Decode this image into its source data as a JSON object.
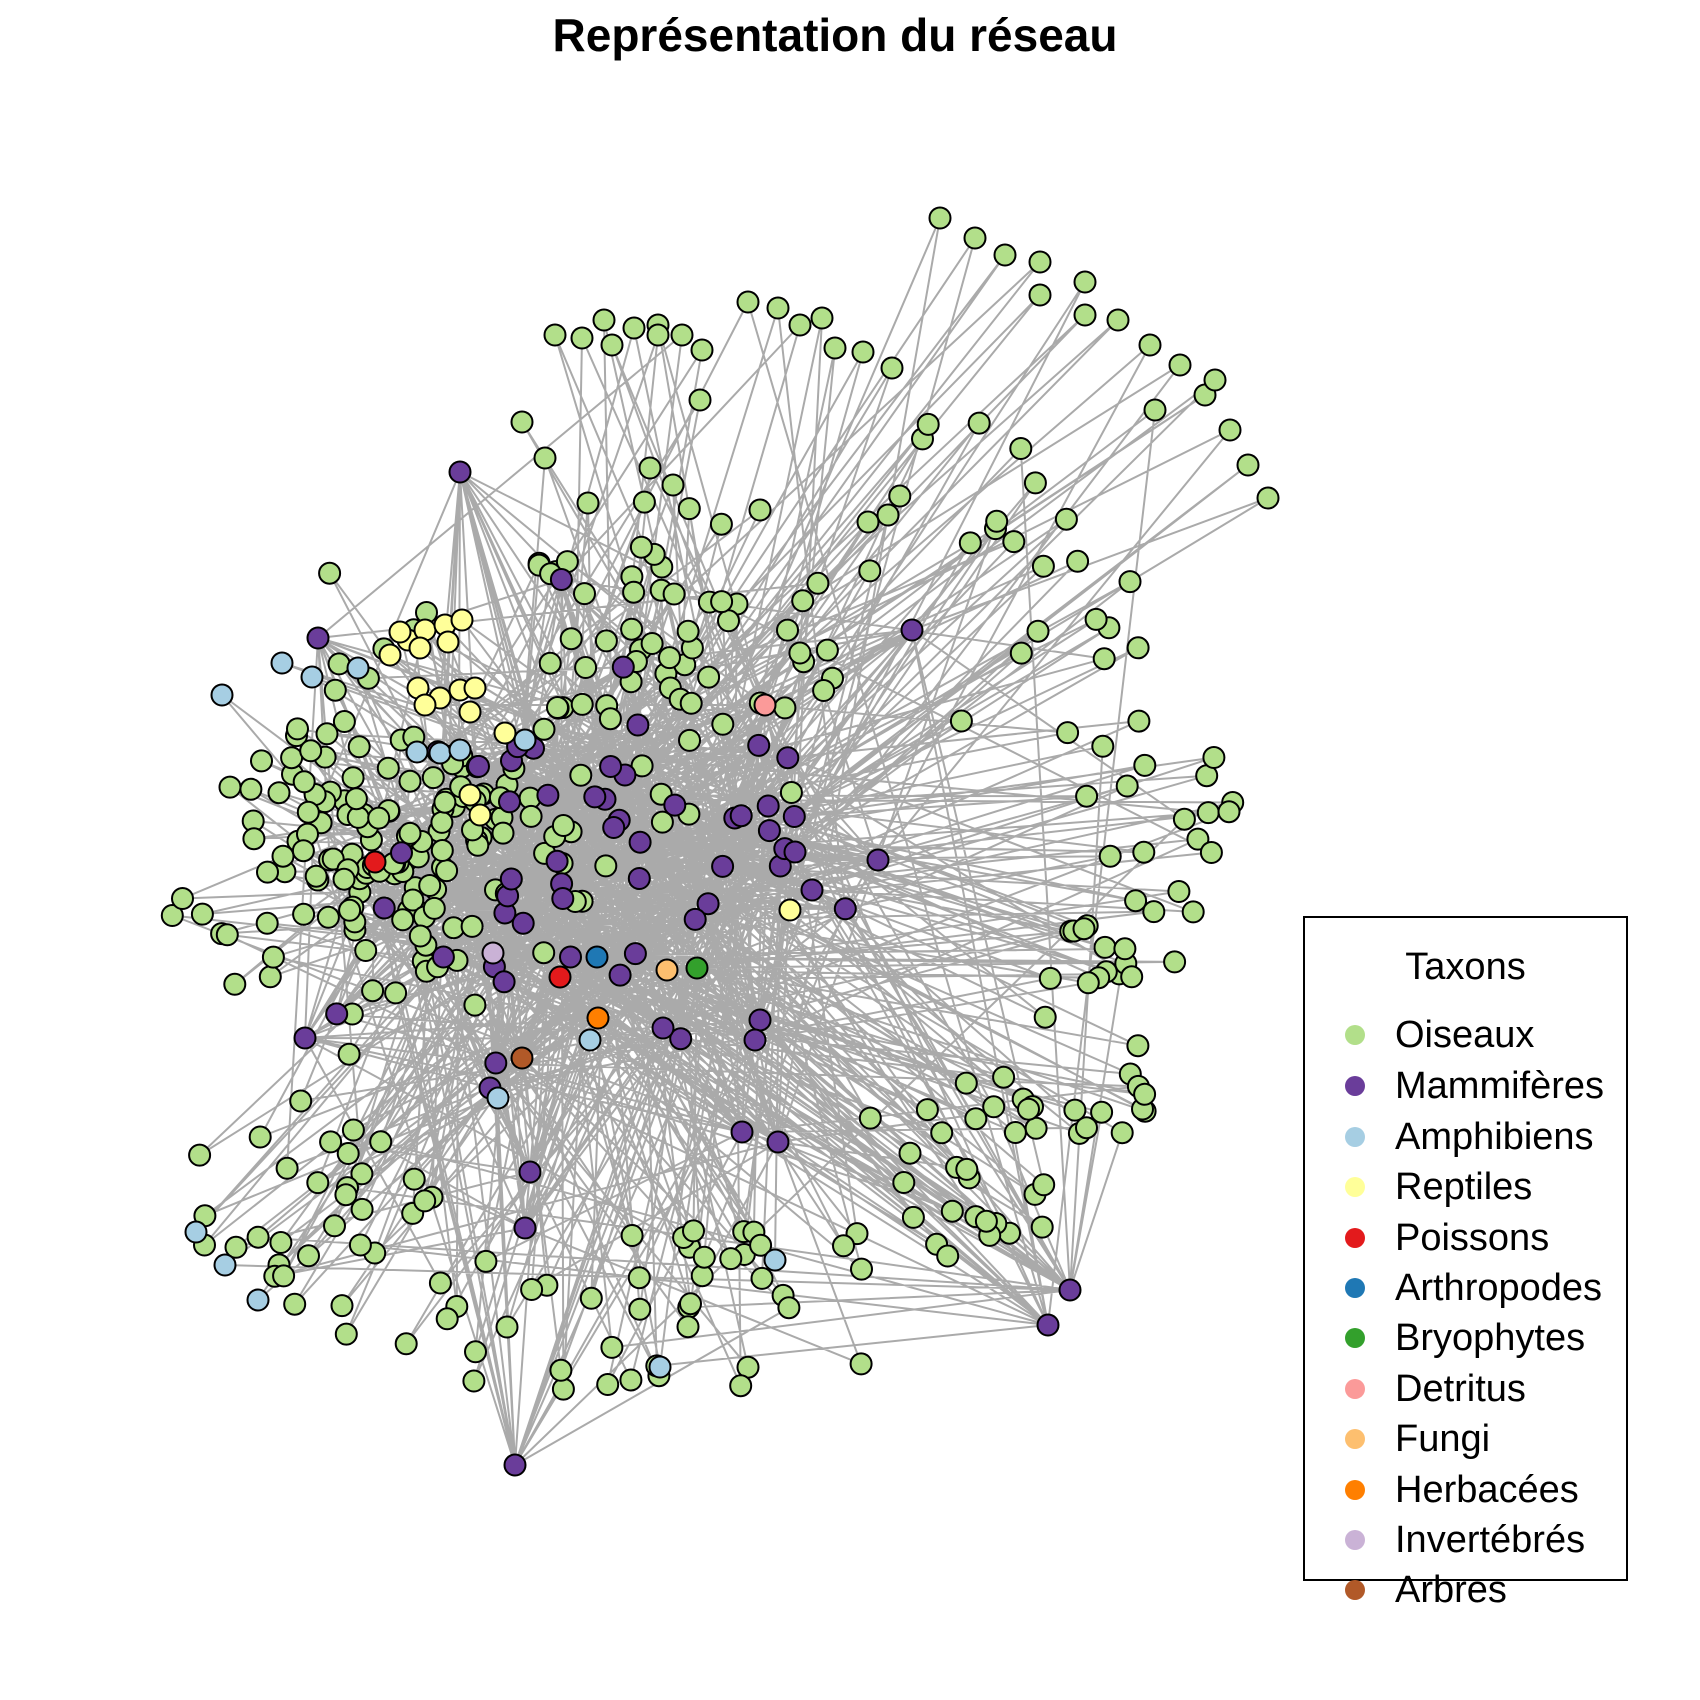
{
  "title": "Représentation du réseau",
  "legend": {
    "title": "Taxons",
    "items": [
      {
        "label": "Oiseaux",
        "color": "#b2df8a"
      },
      {
        "label": "Mammifères",
        "color": "#6a3d9a"
      },
      {
        "label": "Amphibiens",
        "color": "#a6cee3"
      },
      {
        "label": "Reptiles",
        "color": "#ffff99"
      },
      {
        "label": "Poissons",
        "color": "#e31a1c"
      },
      {
        "label": "Arthropodes",
        "color": "#1f78b4"
      },
      {
        "label": "Bryophytes",
        "color": "#33a02c"
      },
      {
        "label": "Detritus",
        "color": "#fb9a99"
      },
      {
        "label": "Fungi",
        "color": "#fdbf6f"
      },
      {
        "label": "Herbacées",
        "color": "#ff7f00"
      },
      {
        "label": "Invertébrés",
        "color": "#cab2d6"
      },
      {
        "label": "Arbres",
        "color": "#b15928"
      }
    ]
  },
  "network": {
    "edge_color": "#aaaaaa",
    "node_border": "#000000"
  }
}
